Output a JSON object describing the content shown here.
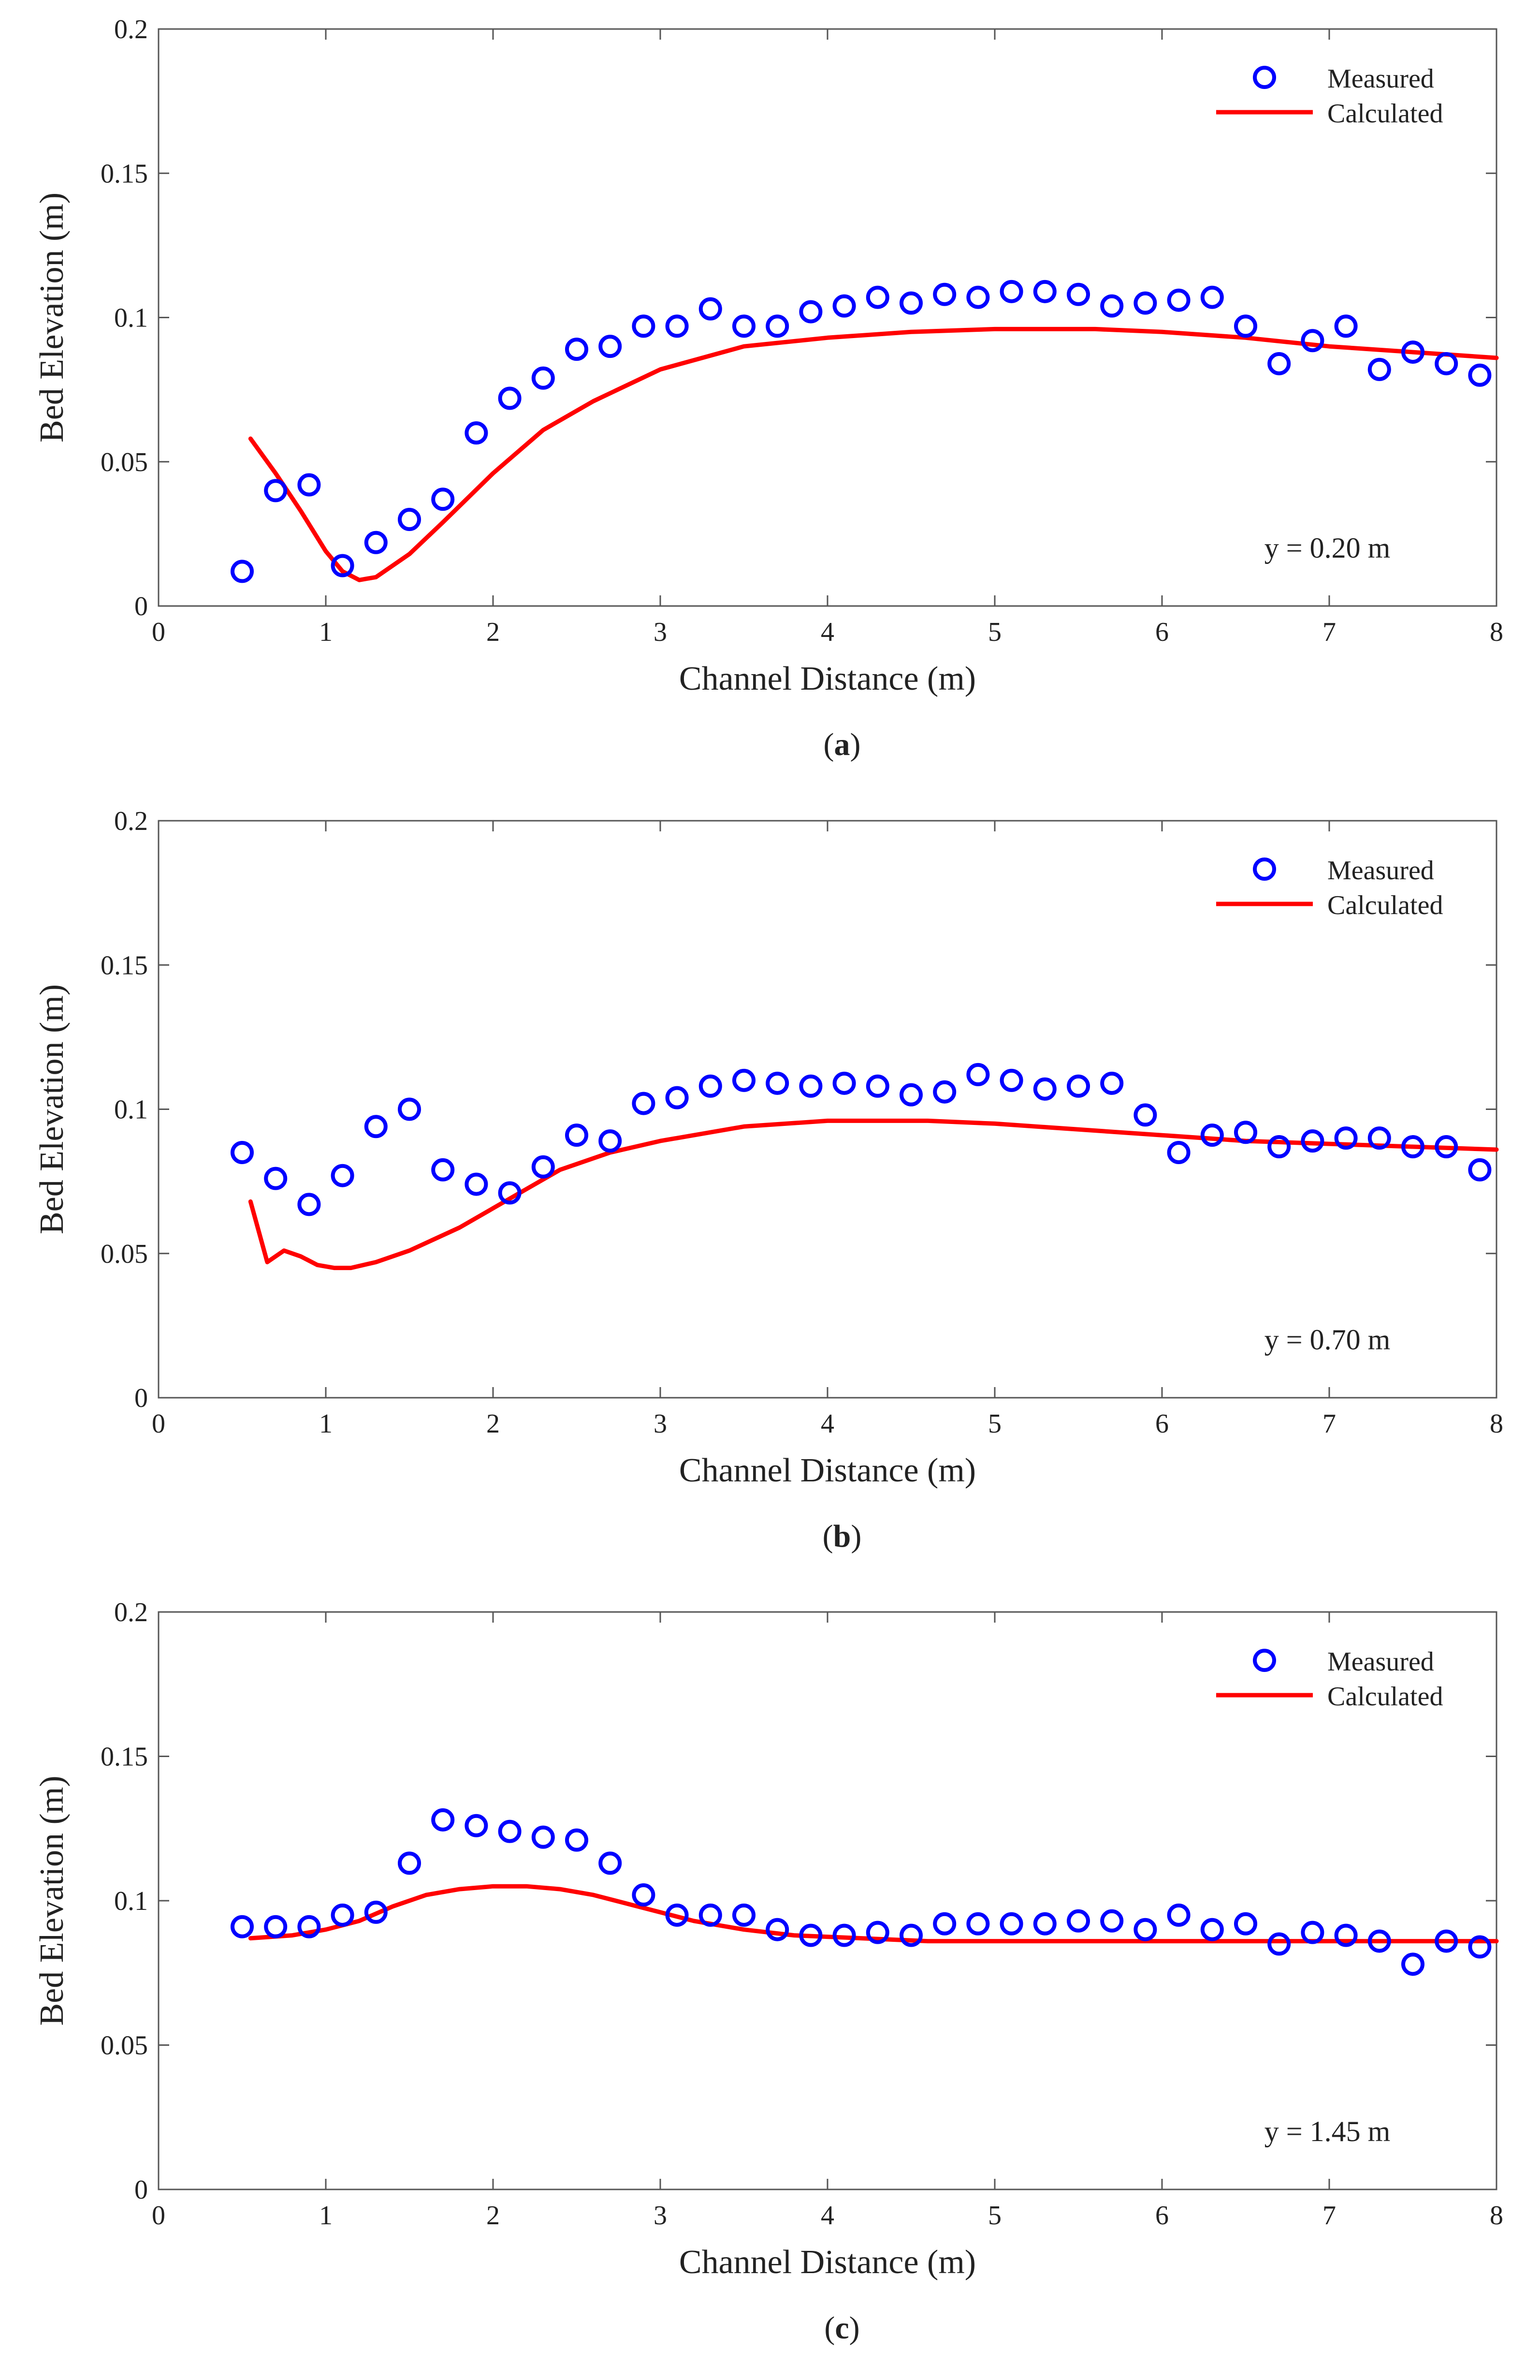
{
  "figure": {
    "x_label": "Channel Distance (m)",
    "y_label": "Bed Elevation (m)"
  },
  "chart_data": [
    {
      "type": "scatter",
      "panel_label": "a",
      "annotation": "y = 0.20 m",
      "xlabel": "Channel Distance (m)",
      "ylabel": "Bed Elevation (m)",
      "xlim": [
        0,
        8
      ],
      "ylim": [
        0,
        0.2
      ],
      "xticks": [
        0,
        1,
        2,
        3,
        4,
        5,
        6,
        7,
        8
      ],
      "yticks": [
        0,
        0.05,
        0.1,
        0.15,
        0.2
      ],
      "ytick_labels": [
        "0",
        "0.05",
        "0.1",
        "0.15",
        "0.2"
      ],
      "legend": {
        "position": "top-right",
        "entries": [
          "Measured",
          "Calculated"
        ]
      },
      "series": [
        {
          "name": "Measured",
          "marker": "circle",
          "color": "#0000ff",
          "x": [
            0.5,
            0.7,
            0.9,
            1.1,
            1.3,
            1.5,
            1.7,
            1.9,
            2.1,
            2.3,
            2.5,
            2.7,
            2.9,
            3.1,
            3.3,
            3.5,
            3.7,
            3.9,
            4.1,
            4.3,
            4.5,
            4.7,
            4.9,
            5.1,
            5.3,
            5.5,
            5.7,
            5.9,
            6.1,
            6.3,
            6.5,
            6.7,
            6.9,
            7.1,
            7.3,
            7.5,
            7.7,
            7.9
          ],
          "y": [
            0.012,
            0.04,
            0.042,
            0.014,
            0.022,
            0.03,
            0.037,
            0.06,
            0.072,
            0.079,
            0.089,
            0.09,
            0.097,
            0.097,
            0.103,
            0.097,
            0.097,
            0.102,
            0.104,
            0.107,
            0.105,
            0.108,
            0.107,
            0.109,
            0.109,
            0.108,
            0.104,
            0.105,
            0.106,
            0.107,
            0.097,
            0.084,
            0.092,
            0.097,
            0.082,
            0.088,
            0.084,
            0.08
          ]
        },
        {
          "name": "Calculated",
          "line": "solid",
          "color": "#ff0000",
          "x": [
            0.55,
            0.7,
            0.85,
            1.0,
            1.1,
            1.2,
            1.3,
            1.5,
            1.7,
            2.0,
            2.3,
            2.6,
            3.0,
            3.5,
            4.0,
            4.5,
            5.0,
            5.3,
            5.6,
            6.0,
            6.5,
            7.0,
            7.5,
            8.0
          ],
          "y": [
            0.058,
            0.046,
            0.033,
            0.019,
            0.012,
            0.009,
            0.01,
            0.018,
            0.029,
            0.046,
            0.061,
            0.071,
            0.082,
            0.09,
            0.093,
            0.095,
            0.096,
            0.096,
            0.096,
            0.095,
            0.093,
            0.09,
            0.088,
            0.086
          ]
        }
      ]
    },
    {
      "type": "scatter",
      "panel_label": "b",
      "annotation": "y = 0.70 m",
      "xlabel": "Channel Distance (m)",
      "ylabel": "Bed Elevation (m)",
      "xlim": [
        0,
        8
      ],
      "ylim": [
        0,
        0.2
      ],
      "xticks": [
        0,
        1,
        2,
        3,
        4,
        5,
        6,
        7,
        8
      ],
      "yticks": [
        0,
        0.05,
        0.1,
        0.15,
        0.2
      ],
      "ytick_labels": [
        "0",
        "0.05",
        "0.1",
        "0.15",
        "0.2"
      ],
      "legend": {
        "position": "top-right",
        "entries": [
          "Measured",
          "Calculated"
        ]
      },
      "series": [
        {
          "name": "Measured",
          "marker": "circle",
          "color": "#0000ff",
          "x": [
            0.5,
            0.7,
            0.9,
            1.1,
            1.3,
            1.5,
            1.7,
            1.9,
            2.1,
            2.3,
            2.5,
            2.7,
            2.9,
            3.1,
            3.3,
            3.5,
            3.7,
            3.9,
            4.1,
            4.3,
            4.5,
            4.7,
            4.9,
            5.1,
            5.3,
            5.5,
            5.7,
            5.9,
            6.1,
            6.3,
            6.5,
            6.7,
            6.9,
            7.1,
            7.3,
            7.5,
            7.7,
            7.9
          ],
          "y": [
            0.085,
            0.076,
            0.067,
            0.077,
            0.094,
            0.1,
            0.079,
            0.074,
            0.071,
            0.08,
            0.091,
            0.089,
            0.102,
            0.104,
            0.108,
            0.11,
            0.109,
            0.108,
            0.109,
            0.108,
            0.105,
            0.106,
            0.112,
            0.11,
            0.107,
            0.108,
            0.109,
            0.098,
            0.085,
            0.091,
            0.092,
            0.087,
            0.089,
            0.09,
            0.09,
            0.087,
            0.087,
            0.079
          ]
        },
        {
          "name": "Calculated",
          "line": "solid",
          "color": "#ff0000",
          "x": [
            0.55,
            0.65,
            0.75,
            0.85,
            0.95,
            1.05,
            1.15,
            1.3,
            1.5,
            1.8,
            2.1,
            2.4,
            2.7,
            3.0,
            3.5,
            4.0,
            4.3,
            4.6,
            5.0,
            5.5,
            6.0,
            6.5,
            7.0,
            7.5,
            8.0
          ],
          "y": [
            0.068,
            0.047,
            0.051,
            0.049,
            0.046,
            0.045,
            0.045,
            0.047,
            0.051,
            0.059,
            0.069,
            0.079,
            0.085,
            0.089,
            0.094,
            0.096,
            0.096,
            0.096,
            0.095,
            0.093,
            0.091,
            0.089,
            0.088,
            0.087,
            0.086
          ]
        }
      ]
    },
    {
      "type": "scatter",
      "panel_label": "c",
      "annotation": "y = 1.45 m",
      "xlabel": "Channel Distance (m)",
      "ylabel": "Bed Elevation (m)",
      "xlim": [
        0,
        8
      ],
      "ylim": [
        0,
        0.2
      ],
      "xticks": [
        0,
        1,
        2,
        3,
        4,
        5,
        6,
        7,
        8
      ],
      "yticks": [
        0,
        0.05,
        0.1,
        0.15,
        0.2
      ],
      "ytick_labels": [
        "0",
        "0.05",
        "0.1",
        "0.15",
        "0.2"
      ],
      "legend": {
        "position": "top-right",
        "entries": [
          "Measured",
          "Calculated"
        ]
      },
      "series": [
        {
          "name": "Measured",
          "marker": "circle",
          "color": "#0000ff",
          "x": [
            0.5,
            0.7,
            0.9,
            1.1,
            1.3,
            1.5,
            1.7,
            1.9,
            2.1,
            2.3,
            2.5,
            2.7,
            2.9,
            3.1,
            3.3,
            3.5,
            3.7,
            3.9,
            4.1,
            4.3,
            4.5,
            4.7,
            4.9,
            5.1,
            5.3,
            5.5,
            5.7,
            5.9,
            6.1,
            6.3,
            6.5,
            6.7,
            6.9,
            7.1,
            7.3,
            7.5,
            7.7,
            7.9
          ],
          "y": [
            0.091,
            0.091,
            0.091,
            0.095,
            0.096,
            0.113,
            0.128,
            0.126,
            0.124,
            0.122,
            0.121,
            0.113,
            0.102,
            0.095,
            0.095,
            0.095,
            0.09,
            0.088,
            0.088,
            0.089,
            0.088,
            0.092,
            0.092,
            0.092,
            0.092,
            0.093,
            0.093,
            0.09,
            0.095,
            0.09,
            0.092,
            0.085,
            0.089,
            0.088,
            0.086,
            0.078,
            0.086,
            0.084
          ]
        },
        {
          "name": "Calculated",
          "line": "solid",
          "color": "#ff0000",
          "x": [
            0.55,
            0.8,
            1.0,
            1.2,
            1.4,
            1.6,
            1.8,
            2.0,
            2.2,
            2.4,
            2.6,
            2.8,
            3.0,
            3.2,
            3.5,
            3.8,
            4.2,
            4.6,
            5.0,
            5.5,
            6.0,
            6.5,
            7.0,
            7.5,
            8.0
          ],
          "y": [
            0.087,
            0.088,
            0.09,
            0.093,
            0.098,
            0.102,
            0.104,
            0.105,
            0.105,
            0.104,
            0.102,
            0.099,
            0.096,
            0.093,
            0.09,
            0.088,
            0.087,
            0.086,
            0.086,
            0.086,
            0.086,
            0.086,
            0.086,
            0.086,
            0.086
          ]
        }
      ]
    }
  ]
}
